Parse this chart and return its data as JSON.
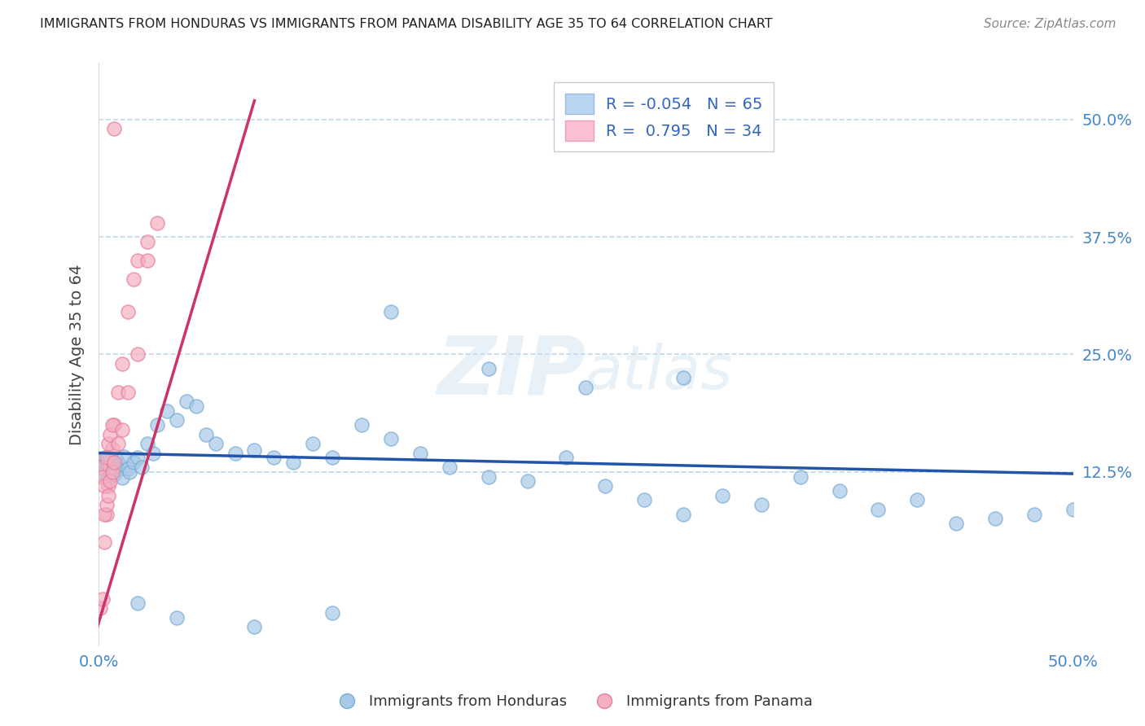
{
  "title": "IMMIGRANTS FROM HONDURAS VS IMMIGRANTS FROM PANAMA DISABILITY AGE 35 TO 64 CORRELATION CHART",
  "source": "Source: ZipAtlas.com",
  "ylabel": "Disability Age 35 to 64",
  "x_min": 0.0,
  "x_max": 0.5,
  "y_min": -0.06,
  "y_max": 0.56,
  "watermark_zip": "ZIP",
  "watermark_atlas": "atlas",
  "blue_color": "#a8c8e8",
  "blue_edge": "#7baed4",
  "pink_color": "#f4b0c0",
  "pink_edge": "#e880a0",
  "blue_line_color": "#2255aa",
  "pink_line_color": "#cc3366",
  "grid_color": "#c0d8f0",
  "tick_color": "#4488cc",
  "title_color": "#222222",
  "source_color": "#888888",
  "ylabel_color": "#444444",
  "legend_label_color": "#3366bb",
  "R_honduras": -0.054,
  "N_honduras": 65,
  "R_panama": 0.795,
  "N_panama": 34,
  "y_ticks": [
    0.0,
    0.125,
    0.25,
    0.375,
    0.5
  ],
  "y_tick_labels": [
    "",
    "12.5%",
    "25.0%",
    "37.5%",
    "50.0%"
  ],
  "x_ticks": [
    0.0,
    0.5
  ],
  "x_tick_labels": [
    "0.0%",
    "50.0%"
  ],
  "blue_x": [
    0.001,
    0.002,
    0.003,
    0.003,
    0.004,
    0.004,
    0.005,
    0.005,
    0.006,
    0.006,
    0.007,
    0.008,
    0.009,
    0.01,
    0.011,
    0.012,
    0.013,
    0.015,
    0.016,
    0.018,
    0.02,
    0.022,
    0.025,
    0.028,
    0.03,
    0.035,
    0.04,
    0.045,
    0.05,
    0.055,
    0.06,
    0.07,
    0.08,
    0.09,
    0.1,
    0.11,
    0.12,
    0.135,
    0.15,
    0.165,
    0.18,
    0.2,
    0.22,
    0.24,
    0.26,
    0.28,
    0.3,
    0.32,
    0.34,
    0.36,
    0.38,
    0.4,
    0.42,
    0.44,
    0.46,
    0.48,
    0.5,
    0.15,
    0.2,
    0.25,
    0.3,
    0.12,
    0.08,
    0.04,
    0.02
  ],
  "blue_y": [
    0.13,
    0.125,
    0.14,
    0.12,
    0.135,
    0.128,
    0.132,
    0.118,
    0.14,
    0.125,
    0.13,
    0.122,
    0.138,
    0.127,
    0.133,
    0.119,
    0.141,
    0.128,
    0.125,
    0.135,
    0.14,
    0.13,
    0.155,
    0.145,
    0.175,
    0.19,
    0.18,
    0.2,
    0.195,
    0.165,
    0.155,
    0.145,
    0.148,
    0.14,
    0.135,
    0.155,
    0.14,
    0.175,
    0.16,
    0.145,
    0.13,
    0.12,
    0.115,
    0.14,
    0.11,
    0.095,
    0.08,
    0.1,
    0.09,
    0.12,
    0.105,
    0.085,
    0.095,
    0.07,
    0.075,
    0.08,
    0.085,
    0.295,
    0.235,
    0.215,
    0.225,
    -0.025,
    -0.04,
    -0.03,
    -0.015
  ],
  "pink_x": [
    0.001,
    0.002,
    0.003,
    0.004,
    0.005,
    0.006,
    0.007,
    0.008,
    0.01,
    0.012,
    0.015,
    0.018,
    0.02,
    0.025,
    0.03,
    0.001,
    0.002,
    0.003,
    0.004,
    0.005,
    0.006,
    0.007,
    0.003,
    0.004,
    0.005,
    0.006,
    0.007,
    0.008,
    0.01,
    0.012,
    0.015,
    0.02,
    0.025,
    0.008
  ],
  "pink_y": [
    -0.02,
    -0.01,
    0.05,
    0.08,
    0.11,
    0.13,
    0.15,
    0.175,
    0.21,
    0.24,
    0.295,
    0.33,
    0.35,
    0.37,
    0.39,
    0.13,
    0.12,
    0.11,
    0.14,
    0.155,
    0.165,
    0.175,
    0.08,
    0.09,
    0.1,
    0.115,
    0.125,
    0.135,
    0.155,
    0.17,
    0.21,
    0.25,
    0.35,
    0.49
  ],
  "blue_line_x0": 0.0,
  "blue_line_x1": 0.5,
  "blue_line_y0": 0.145,
  "blue_line_y1": 0.123,
  "pink_line_x0": -0.002,
  "pink_line_x1": 0.08,
  "pink_line_y0": -0.05,
  "pink_line_y1": 0.52
}
